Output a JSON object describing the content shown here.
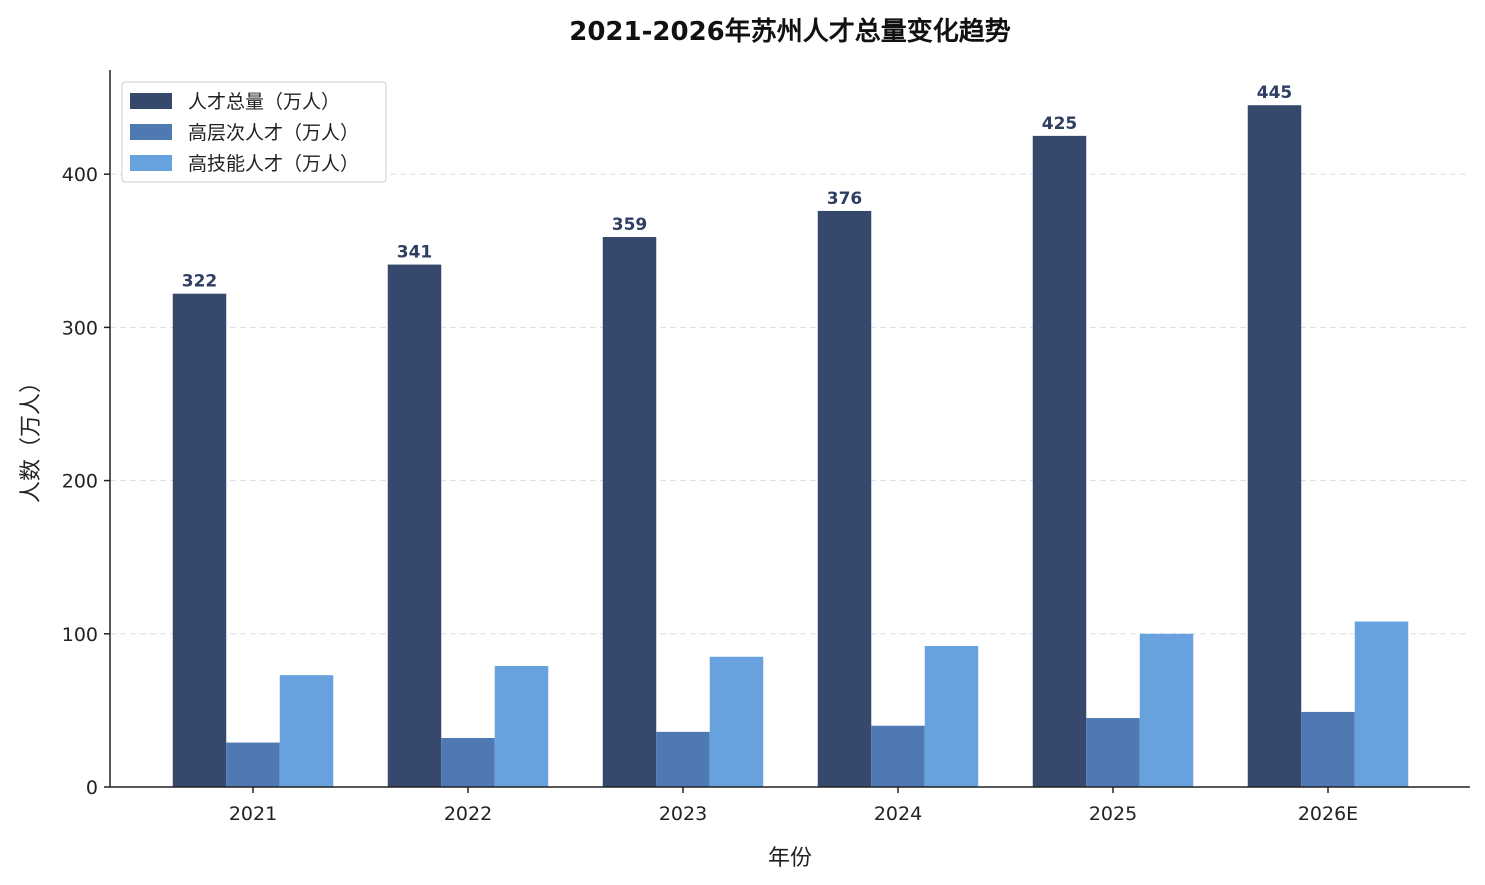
{
  "chart_data": {
    "type": "bar",
    "title": "2021-2026年苏州人才总量变化趋势",
    "xlabel": "年份",
    "ylabel": "人数（万人）",
    "categories": [
      "2021",
      "2022",
      "2023",
      "2024",
      "2025",
      "2026E"
    ],
    "series": [
      {
        "name": "人才总量（万人）",
        "color": "#36486b",
        "values": [
          322,
          341,
          359,
          376,
          425,
          445
        ],
        "show_labels": true
      },
      {
        "name": "高层次人才（万人）",
        "color": "#4e79b3",
        "values": [
          29,
          32,
          36,
          40,
          45,
          49
        ],
        "show_labels": false
      },
      {
        "name": "高技能人才（万人）",
        "color": "#67a1de",
        "values": [
          73,
          79,
          85,
          92,
          100,
          108
        ],
        "show_labels": false
      }
    ],
    "ylim": [
      0,
      468
    ],
    "yticks": [
      0,
      100,
      200,
      300,
      400
    ],
    "grid": true,
    "legend_position": "top-left",
    "data_label_color": "#2e3f63"
  }
}
